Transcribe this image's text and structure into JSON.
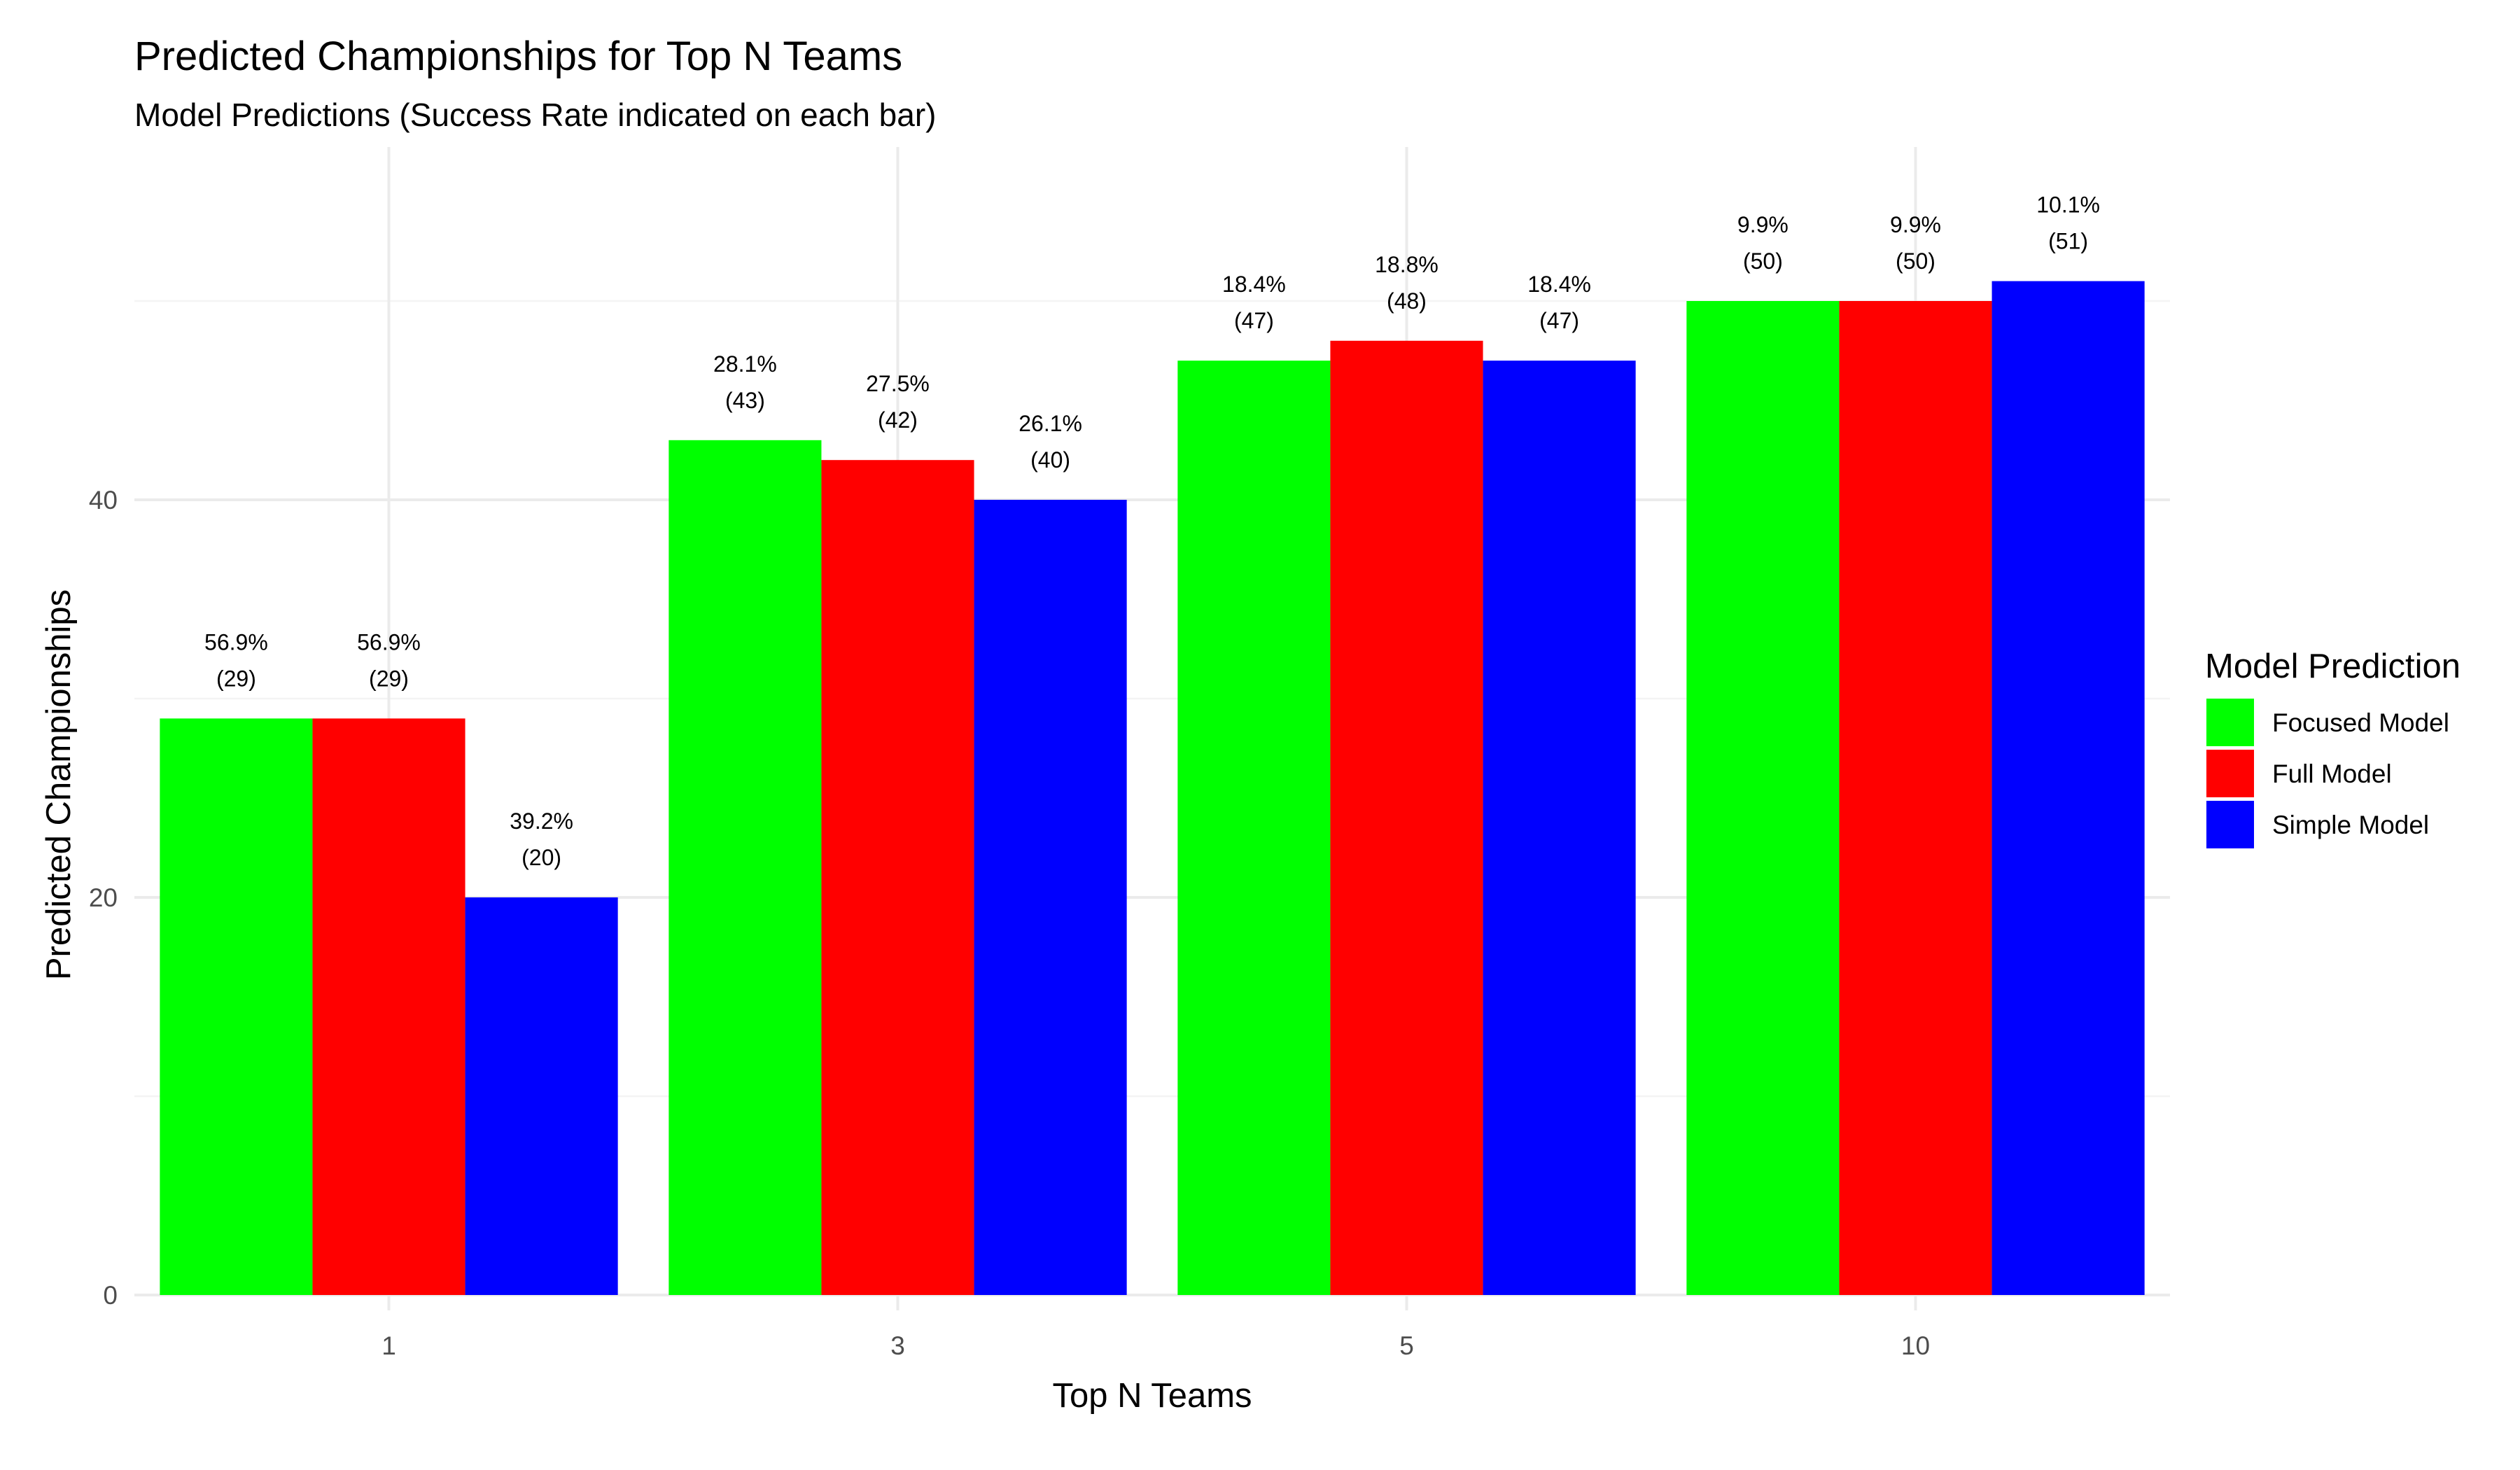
{
  "chart_data": {
    "type": "bar",
    "title": "Predicted Championships for Top N Teams",
    "subtitle": "Model Predictions (Success Rate indicated on each bar)",
    "xlabel": "Top N Teams",
    "ylabel": "Predicted Championships",
    "categories": [
      "1",
      "3",
      "5",
      "10"
    ],
    "yticks": [
      "0",
      "20",
      "40"
    ],
    "ylim": [
      0,
      56
    ],
    "grid": true,
    "legend": {
      "title": "Model Prediction",
      "position": "right"
    },
    "series": [
      {
        "name": "Focused Model",
        "color": "#00ff00",
        "values": [
          29,
          43,
          47,
          50
        ],
        "labels": [
          "56.9%",
          "28.1%",
          "18.4%",
          "9.9%"
        ]
      },
      {
        "name": "Full Model",
        "color": "#ff0000",
        "values": [
          29,
          42,
          48,
          50
        ],
        "labels": [
          "56.9%",
          "27.5%",
          "18.8%",
          "9.9%"
        ]
      },
      {
        "name": "Simple Model",
        "color": "#0000ff",
        "values": [
          20,
          40,
          47,
          51
        ],
        "labels": [
          "39.2%",
          "26.1%",
          "18.4%",
          "10.1%"
        ]
      }
    ]
  }
}
